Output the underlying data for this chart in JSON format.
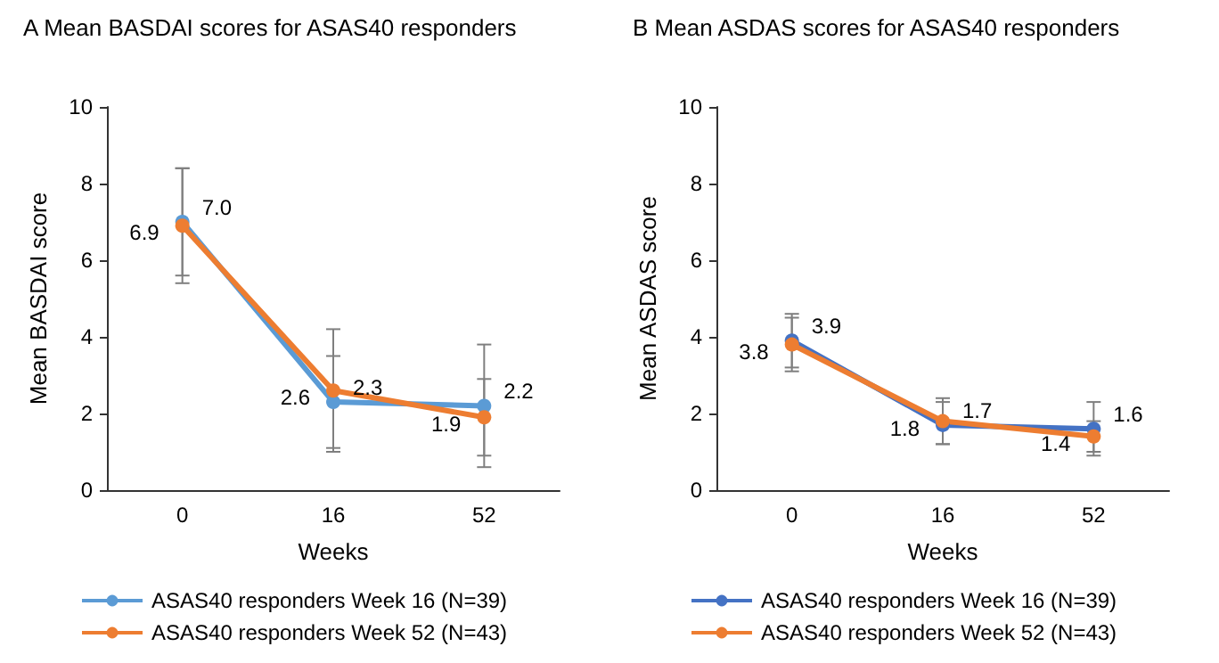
{
  "chart_data": [
    {
      "type": "line",
      "title": "A Mean BASDAI scores for ASAS40 responders",
      "xlabel": "Weeks",
      "ylabel": "Mean BASDAI score",
      "categories": [
        "0",
        "16",
        "52"
      ],
      "ylim": [
        0,
        10
      ],
      "yticks": [
        0,
        2,
        4,
        6,
        8,
        10
      ],
      "grid": false,
      "legend": "bottom",
      "marker": "circle",
      "series": [
        {
          "name": "ASAS40 responders Week 16 (N=39)",
          "color": "#5b9bd5",
          "values": [
            7.0,
            2.3,
            2.2
          ],
          "value_labels": [
            "7.0",
            "2.3",
            "2.2"
          ],
          "errors": [
            [
              5.6,
              8.4
            ],
            [
              1.1,
              3.5
            ],
            [
              0.6,
              3.8
            ]
          ]
        },
        {
          "name": "ASAS40 responders Week 52 (N=43)",
          "color": "#ed7d31",
          "values": [
            6.9,
            2.6,
            1.9
          ],
          "value_labels": [
            "6.9",
            "2.6",
            "1.9"
          ],
          "errors": [
            [
              5.4,
              8.4
            ],
            [
              1.0,
              4.2
            ],
            [
              0.9,
              2.9
            ]
          ]
        }
      ]
    },
    {
      "type": "line",
      "title": "B Mean ASDAS scores for ASAS40 responders",
      "xlabel": "Weeks",
      "ylabel": "Mean ASDAS score",
      "categories": [
        "0",
        "16",
        "52"
      ],
      "ylim": [
        0,
        10
      ],
      "yticks": [
        0,
        2,
        4,
        6,
        8,
        10
      ],
      "grid": false,
      "legend": "bottom",
      "marker": "circle",
      "series": [
        {
          "name": "ASAS40 responders Week 16 (N=39)",
          "color": "#4472c4",
          "values": [
            3.9,
            1.7,
            1.6
          ],
          "value_labels": [
            "3.9",
            "1.7",
            "1.6"
          ],
          "errors": [
            [
              3.2,
              4.6
            ],
            [
              1.2,
              2.3
            ],
            [
              0.9,
              2.3
            ]
          ]
        },
        {
          "name": "ASAS40 responders Week 52 (N=43)",
          "color": "#ed7d31",
          "values": [
            3.8,
            1.8,
            1.4
          ],
          "value_labels": [
            "3.8",
            "1.8",
            "1.4"
          ],
          "errors": [
            [
              3.1,
              4.5
            ],
            [
              1.2,
              2.4
            ],
            [
              1.0,
              1.8
            ]
          ]
        }
      ]
    }
  ]
}
